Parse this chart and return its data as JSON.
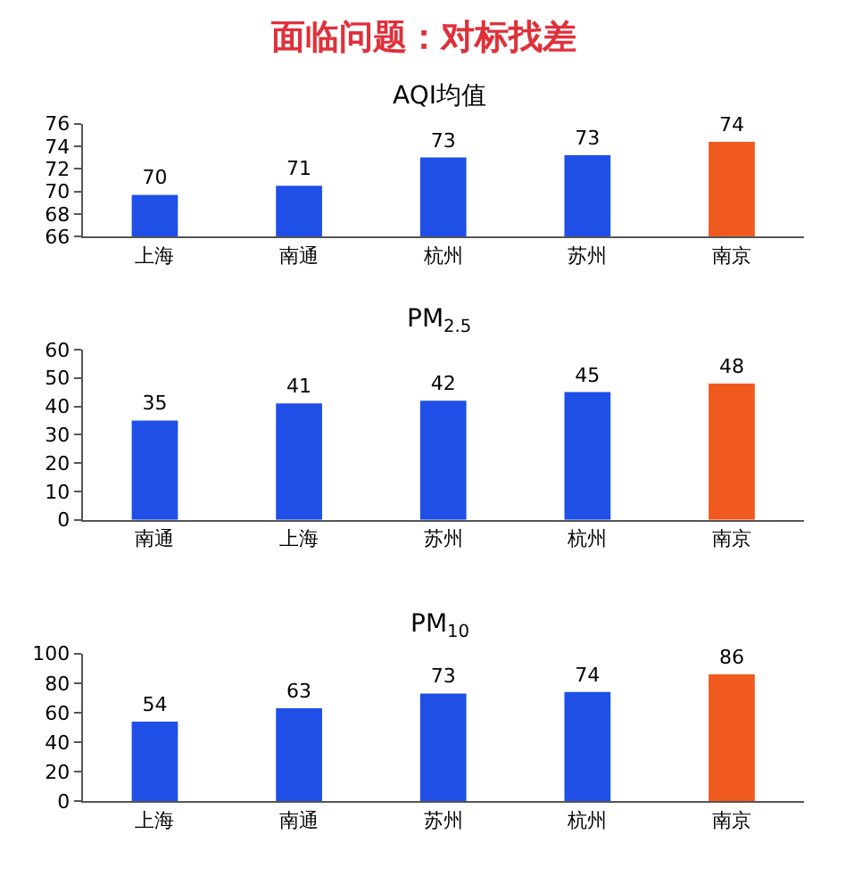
{
  "chart_data": [
    {
      "type": "bar",
      "title": "AQI均值",
      "annotations": [
        "面临问题：对标找差"
      ],
      "categories": [
        "上海",
        "南通",
        "杭州",
        "苏州",
        "南京"
      ],
      "values": [
        69.7,
        70.5,
        73.0,
        73.2,
        74.4
      ],
      "value_labels": [
        "70",
        "71",
        "73",
        "73",
        "74"
      ],
      "colors": [
        "#1f4fe6",
        "#1f4fe6",
        "#1f4fe6",
        "#1f4fe6",
        "#f05a1e"
      ],
      "ylim": [
        66,
        76
      ],
      "yticks": [
        66,
        68,
        70,
        72,
        74,
        76
      ]
    },
    {
      "type": "bar",
      "title": "PM$_{2.5}$",
      "categories": [
        "南通",
        "上海",
        "苏州",
        "杭州",
        "南京"
      ],
      "values": [
        35,
        41,
        42,
        45,
        48
      ],
      "data_labels": true,
      "colors": [
        "#1f4fe6",
        "#1f4fe6",
        "#1f4fe6",
        "#1f4fe6",
        "#f05a1e"
      ],
      "ylim": [
        0,
        60
      ],
      "yticks": [
        0,
        10,
        20,
        30,
        40,
        50,
        60
      ]
    },
    {
      "type": "bar",
      "title": "PM$_{10}$",
      "categories": [
        "上海",
        "南通",
        "苏州",
        "杭州",
        "南京"
      ],
      "values": [
        54,
        63,
        73,
        74,
        86
      ],
      "data_labels": true,
      "colors": [
        "#1f4fe6",
        "#1f4fe6",
        "#1f4fe6",
        "#1f4fe6",
        "#f05a1e"
      ],
      "ylim": [
        0,
        100
      ],
      "yticks": [
        0,
        20,
        40,
        60,
        80,
        100
      ]
    }
  ]
}
